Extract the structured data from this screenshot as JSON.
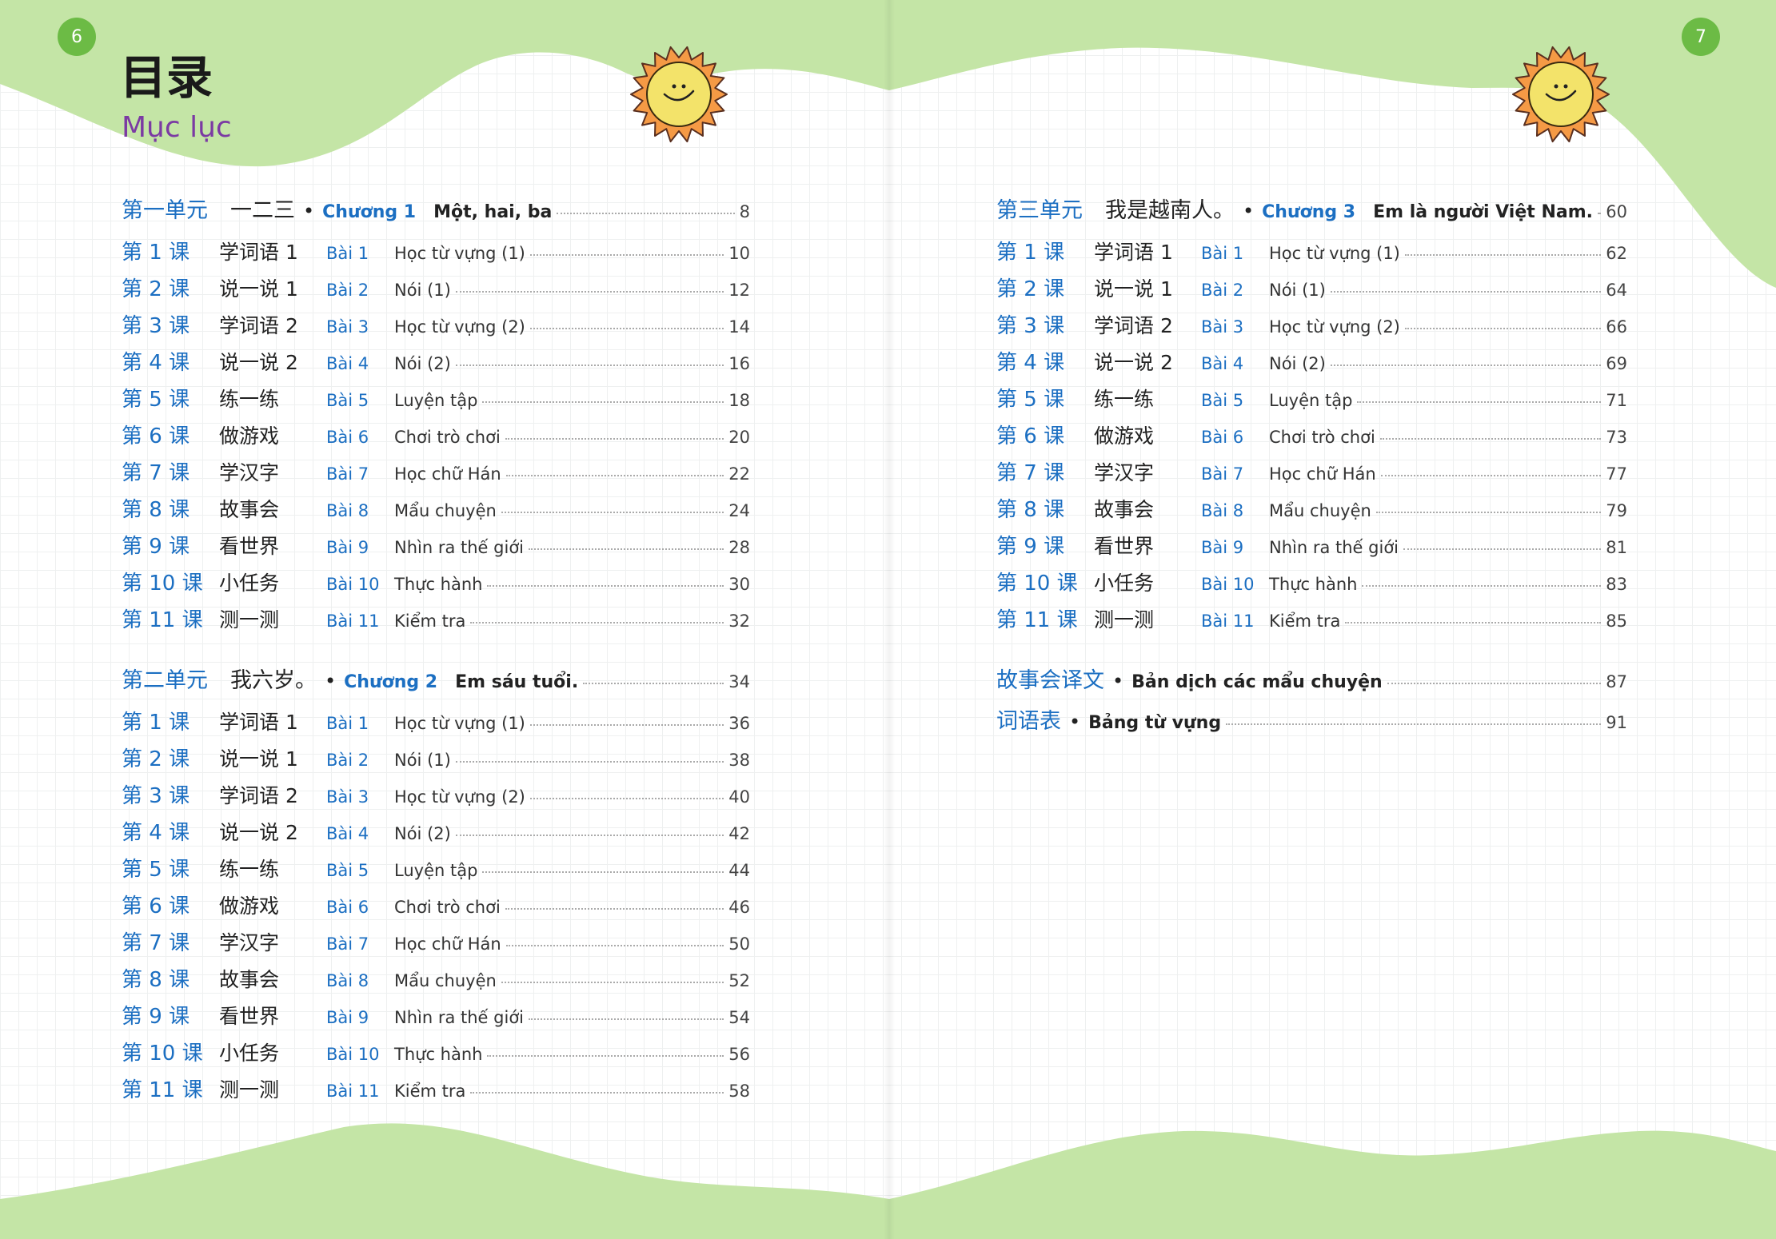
{
  "colors": {
    "green": "#c4e5a6",
    "accent_blue": "#1c6fc2",
    "page_badge": "#6cbb45",
    "title_purple": "#7b3aa3"
  },
  "left_page": {
    "page_number": "6",
    "title_cn": "目录",
    "title_vn": "Mục lục",
    "units": [
      {
        "unit": "第一单元",
        "cn": "一二三",
        "bullet": "•",
        "chapter": "Chương 1",
        "vn": "Một, hai, ba",
        "page": "8",
        "lessons": [
          {
            "ke": "第 1 课",
            "name": "学词语 1",
            "bai": "Bài 1",
            "title": "Học từ vựng (1)",
            "page": "10"
          },
          {
            "ke": "第 2 课",
            "name": "说一说 1",
            "bai": "Bài 2",
            "title": "Nói (1)",
            "page": "12"
          },
          {
            "ke": "第 3 课",
            "name": "学词语 2",
            "bai": "Bài 3",
            "title": "Học từ vựng (2)",
            "page": "14"
          },
          {
            "ke": "第 4 课",
            "name": "说一说 2",
            "bai": "Bài 4",
            "title": "Nói (2)",
            "page": "16"
          },
          {
            "ke": "第 5 课",
            "name": "练一练",
            "bai": "Bài 5",
            "title": "Luyện tập",
            "page": "18"
          },
          {
            "ke": "第 6 课",
            "name": "做游戏",
            "bai": "Bài 6",
            "title": "Chơi trò chơi",
            "page": "20"
          },
          {
            "ke": "第 7 课",
            "name": "学汉字",
            "bai": "Bài 7",
            "title": "Học chữ Hán",
            "page": "22"
          },
          {
            "ke": "第 8 课",
            "name": "故事会",
            "bai": "Bài 8",
            "title": "Mẩu chuyện",
            "page": "24"
          },
          {
            "ke": "第 9 课",
            "name": "看世界",
            "bai": "Bài 9",
            "title": "Nhìn ra thế giới",
            "page": "28"
          },
          {
            "ke": "第 10 课",
            "name": "小任务",
            "bai": "Bài 10",
            "title": "Thực hành",
            "page": "30"
          },
          {
            "ke": "第 11 课",
            "name": "测一测",
            "bai": "Bài 11",
            "title": "Kiểm tra",
            "page": "32"
          }
        ]
      },
      {
        "unit": "第二单元",
        "cn": "我六岁。",
        "bullet": "•",
        "chapter": "Chương 2",
        "vn": "Em sáu tuổi.",
        "page": "34",
        "lessons": [
          {
            "ke": "第 1 课",
            "name": "学词语 1",
            "bai": "Bài 1",
            "title": "Học từ vựng (1)",
            "page": "36"
          },
          {
            "ke": "第 2 课",
            "name": "说一说 1",
            "bai": "Bài 2",
            "title": "Nói (1)",
            "page": "38"
          },
          {
            "ke": "第 3 课",
            "name": "学词语 2",
            "bai": "Bài 3",
            "title": "Học từ vựng (2)",
            "page": "40"
          },
          {
            "ke": "第 4 课",
            "name": "说一说 2",
            "bai": "Bài 4",
            "title": "Nói (2)",
            "page": "42"
          },
          {
            "ke": "第 5 课",
            "name": "练一练",
            "bai": "Bài 5",
            "title": "Luyện tập",
            "page": "44"
          },
          {
            "ke": "第 6 课",
            "name": "做游戏",
            "bai": "Bài 6",
            "title": "Chơi trò chơi",
            "page": "46"
          },
          {
            "ke": "第 7 课",
            "name": "学汉字",
            "bai": "Bài 7",
            "title": "Học chữ Hán",
            "page": "50"
          },
          {
            "ke": "第 8 课",
            "name": "故事会",
            "bai": "Bài 8",
            "title": "Mẩu chuyện",
            "page": "52"
          },
          {
            "ke": "第 9 课",
            "name": "看世界",
            "bai": "Bài 9",
            "title": "Nhìn ra thế giới",
            "page": "54"
          },
          {
            "ke": "第 10 课",
            "name": "小任务",
            "bai": "Bài 10",
            "title": "Thực hành",
            "page": "56"
          },
          {
            "ke": "第 11 课",
            "name": "测一测",
            "bai": "Bài 11",
            "title": "Kiểm tra",
            "page": "58"
          }
        ]
      }
    ]
  },
  "right_page": {
    "page_number": "7",
    "units": [
      {
        "unit": "第三单元",
        "cn": "我是越南人。",
        "bullet": "•",
        "chapter": "Chương 3",
        "vn": "Em là người Việt Nam.",
        "page": "60",
        "lessons": [
          {
            "ke": "第 1 课",
            "name": "学词语 1",
            "bai": "Bài 1",
            "title": "Học từ vựng (1)",
            "page": "62"
          },
          {
            "ke": "第 2 课",
            "name": "说一说 1",
            "bai": "Bài 2",
            "title": "Nói (1)",
            "page": "64"
          },
          {
            "ke": "第 3 课",
            "name": "学词语 2",
            "bai": "Bài 3",
            "title": "Học từ vựng (2)",
            "page": "66"
          },
          {
            "ke": "第 4 课",
            "name": "说一说 2",
            "bai": "Bài 4",
            "title": "Nói (2)",
            "page": "69"
          },
          {
            "ke": "第 5 课",
            "name": "练一练",
            "bai": "Bài 5",
            "title": "Luyện tập",
            "page": "71"
          },
          {
            "ke": "第 6 课",
            "name": "做游戏",
            "bai": "Bài 6",
            "title": "Chơi trò chơi",
            "page": "73"
          },
          {
            "ke": "第 7 课",
            "name": "学汉字",
            "bai": "Bài 7",
            "title": "Học chữ Hán",
            "page": "77"
          },
          {
            "ke": "第 8 课",
            "name": "故事会",
            "bai": "Bài 8",
            "title": "Mẩu chuyện",
            "page": "79"
          },
          {
            "ke": "第 9 课",
            "name": "看世界",
            "bai": "Bài 9",
            "title": "Nhìn ra thế giới",
            "page": "81"
          },
          {
            "ke": "第 10 课",
            "name": "小任务",
            "bai": "Bài 10",
            "title": "Thực hành",
            "page": "83"
          },
          {
            "ke": "第 11 课",
            "name": "测一测",
            "bai": "Bài 11",
            "title": "Kiểm tra",
            "page": "85"
          }
        ]
      }
    ],
    "extras": [
      {
        "cn": "故事会译文",
        "bullet": "•",
        "vn": "Bản dịch các mẩu chuyện",
        "page": "87"
      },
      {
        "cn": "词语表",
        "bullet": "•",
        "vn": "Bảng từ vựng",
        "page": "91"
      }
    ]
  }
}
